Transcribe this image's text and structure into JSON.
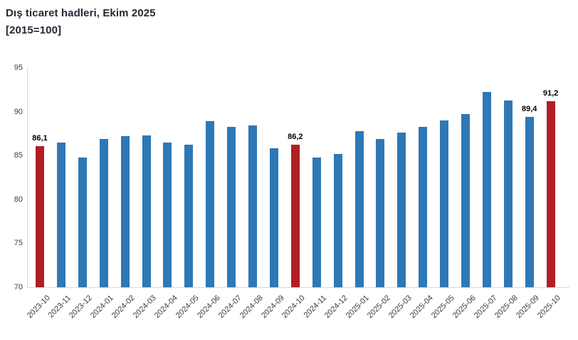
{
  "header": {
    "title_line1": "Dış ticaret hadleri, Ekim 2025",
    "title_line2": "[2015=100]"
  },
  "chart_data": {
    "type": "bar",
    "title": "Dış ticaret hadleri, Ekim 2025 [2015=100]",
    "xlabel": "",
    "ylabel": "",
    "ylim": [
      70,
      95
    ],
    "yticks": [
      70,
      75,
      80,
      85,
      90,
      95
    ],
    "grid": false,
    "legend": false,
    "categories": [
      "2023-10",
      "2023-11",
      "2023-12",
      "2024-01",
      "2024-02",
      "2024-03",
      "2024-04",
      "2024-05",
      "2024-06",
      "2024-07",
      "2024-08",
      "2024-09",
      "2024-10",
      "2024-11",
      "2024-12",
      "2025-01",
      "2025-02",
      "2025-03",
      "2025-04",
      "2025-05",
      "2025-06",
      "2025-07",
      "2025-08",
      "2025-09",
      "2025-10"
    ],
    "values": [
      86.1,
      86.5,
      84.8,
      86.9,
      87.2,
      87.3,
      86.5,
      86.2,
      88.9,
      88.3,
      88.4,
      85.8,
      86.2,
      84.8,
      85.2,
      87.8,
      86.9,
      87.6,
      88.3,
      89.0,
      89.7,
      92.2,
      91.3,
      89.4,
      91.2
    ],
    "highlighted_categories": [
      "2023-10",
      "2024-10",
      "2025-10"
    ],
    "data_labels": [
      {
        "category": "2023-10",
        "text": "86,1"
      },
      {
        "category": "2024-10",
        "text": "86,2"
      },
      {
        "category": "2025-09",
        "text": "89,4"
      },
      {
        "category": "2025-10",
        "text": "91,2"
      }
    ],
    "bar_color": "#2e78b5",
    "highlight_color": "#b01f24",
    "axis_line_color": "#d9d9d9",
    "axis_text_color": "#404040"
  }
}
